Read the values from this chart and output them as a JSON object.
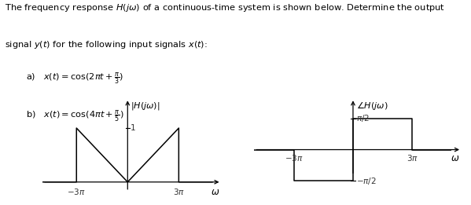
{
  "text_lines": [
    "The frequency response $H(j\\omega)$ of a continuous-time system is shown below. Determine the output",
    "signal $y(t)$ for the following input signals $x(t)$:",
    "a)   $x(t) = \\cos(2\\pi t + \\frac{\\pi}{3})$",
    "b)   $x(t) = \\cos(4\\pi t + \\frac{\\pi}{5})$"
  ],
  "left_plot": {
    "xlim": [
      -5.0,
      5.5
    ],
    "ylim": [
      -0.35,
      1.55
    ],
    "shape_x": [
      -5.0,
      -3,
      -3,
      0,
      3,
      3,
      5.0
    ],
    "shape_y": [
      0,
      0,
      1,
      0,
      1,
      0,
      0
    ]
  },
  "right_plot": {
    "xlim": [
      -5.0,
      5.5
    ],
    "pi_half": 1.5707963267948966,
    "shape_x": [
      -5.0,
      -3,
      -3,
      0,
      0,
      3,
      3,
      5.0
    ],
    "shape_y": [
      0,
      0,
      -1,
      -1,
      1,
      1,
      0,
      0
    ]
  },
  "background_color": "#ffffff",
  "line_color": "#000000",
  "text_color": "#000000",
  "label_color": "#333333"
}
